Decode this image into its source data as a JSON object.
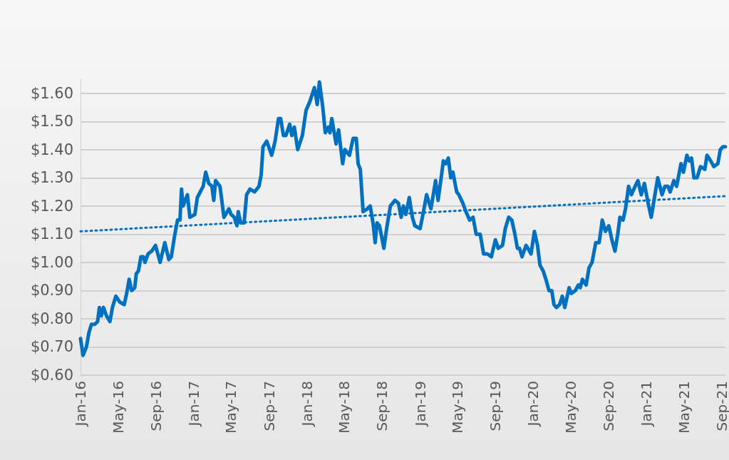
{
  "chart_data": {
    "type": "line",
    "grid": "y",
    "marker": "none",
    "xlim": [
      "2016-01-01",
      "2021-09-12"
    ],
    "ylim": [
      0.6,
      1.65
    ],
    "xticks": [
      {
        "value": "2016-01-01",
        "label": "Jan-16"
      },
      {
        "value": "2016-05-01",
        "label": "May-16"
      },
      {
        "value": "2016-09-01",
        "label": "Sep-16"
      },
      {
        "value": "2017-01-01",
        "label": "Jan-17"
      },
      {
        "value": "2017-05-01",
        "label": "May-17"
      },
      {
        "value": "2017-09-01",
        "label": "Sep-17"
      },
      {
        "value": "2018-01-01",
        "label": "Jan-18"
      },
      {
        "value": "2018-05-01",
        "label": "May-18"
      },
      {
        "value": "2018-09-01",
        "label": "Sep-18"
      },
      {
        "value": "2019-01-01",
        "label": "Jan-19"
      },
      {
        "value": "2019-05-01",
        "label": "May-19"
      },
      {
        "value": "2019-09-01",
        "label": "Sep-19"
      },
      {
        "value": "2020-01-01",
        "label": "Jan-20"
      },
      {
        "value": "2020-05-01",
        "label": "May-20"
      },
      {
        "value": "2020-09-01",
        "label": "Sep-20"
      },
      {
        "value": "2021-01-01",
        "label": "Jan-21"
      },
      {
        "value": "2021-05-01",
        "label": "May-21"
      },
      {
        "value": "2021-09-01",
        "label": "Sep-21"
      }
    ],
    "yticks": [
      {
        "value": 0.6,
        "label": "$0.60"
      },
      {
        "value": 0.7,
        "label": "$0.70"
      },
      {
        "value": 0.8,
        "label": "$0.80"
      },
      {
        "value": 0.9,
        "label": "$0.90"
      },
      {
        "value": 1.0,
        "label": "$1.00"
      },
      {
        "value": 1.1,
        "label": "$1.10"
      },
      {
        "value": 1.2,
        "label": "$1.20"
      },
      {
        "value": 1.3,
        "label": "$1.30"
      },
      {
        "value": 1.4,
        "label": "$1.40"
      },
      {
        "value": 1.5,
        "label": "$1.50"
      },
      {
        "value": 1.6,
        "label": "$1.60"
      }
    ],
    "series": [
      {
        "color": "#0070c0",
        "line_style": "solid",
        "x": [
          "2016-01-01",
          "2016-01-09",
          "2016-01-20",
          "2016-01-28",
          "2016-02-05",
          "2016-02-16",
          "2016-02-25",
          "2016-03-02",
          "2016-03-08",
          "2016-03-15",
          "2016-03-25",
          "2016-04-05",
          "2016-04-13",
          "2016-04-24",
          "2016-05-06",
          "2016-05-21",
          "2016-05-29",
          "2016-06-06",
          "2016-06-14",
          "2016-06-24",
          "2016-06-29",
          "2016-07-06",
          "2016-07-14",
          "2016-07-22",
          "2016-07-27",
          "2016-08-06",
          "2016-08-18",
          "2016-08-30",
          "2016-09-14",
          "2016-09-29",
          "2016-10-12",
          "2016-10-20",
          "2016-10-30",
          "2016-11-09",
          "2016-11-17",
          "2016-11-22",
          "2016-11-27",
          "2016-12-11",
          "2016-12-19",
          "2017-01-04",
          "2017-01-12",
          "2017-01-31",
          "2017-02-08",
          "2017-02-18",
          "2017-02-28",
          "2017-03-06",
          "2017-03-12",
          "2017-03-26",
          "2017-04-08",
          "2017-04-24",
          "2017-05-01",
          "2017-05-11",
          "2017-05-20",
          "2017-05-24",
          "2017-06-01",
          "2017-06-12",
          "2017-06-20",
          "2017-07-01",
          "2017-07-16",
          "2017-07-30",
          "2017-08-06",
          "2017-08-12",
          "2017-08-24",
          "2017-09-09",
          "2017-09-20",
          "2017-10-01",
          "2017-10-08",
          "2017-10-17",
          "2017-10-25",
          "2017-11-06",
          "2017-11-13",
          "2017-11-21",
          "2017-12-02",
          "2017-12-17",
          "2017-12-29",
          "2018-01-10",
          "2018-01-25",
          "2018-02-03",
          "2018-02-10",
          "2018-02-21",
          "2018-03-01",
          "2018-03-11",
          "2018-03-16",
          "2018-03-22",
          "2018-04-05",
          "2018-04-13",
          "2018-04-26",
          "2018-05-03",
          "2018-05-18",
          "2018-05-30",
          "2018-06-09",
          "2018-06-15",
          "2018-06-22",
          "2018-07-01",
          "2018-07-15",
          "2018-07-24",
          "2018-08-02",
          "2018-08-09",
          "2018-08-15",
          "2018-08-23",
          "2018-09-06",
          "2018-09-15",
          "2018-09-27",
          "2018-10-12",
          "2018-10-23",
          "2018-11-01",
          "2018-11-08",
          "2018-11-16",
          "2018-11-27",
          "2018-12-07",
          "2018-12-15",
          "2019-01-01",
          "2019-01-12",
          "2019-01-22",
          "2019-02-05",
          "2019-02-20",
          "2019-02-28",
          "2019-03-10",
          "2019-03-17",
          "2019-03-25",
          "2019-04-02",
          "2019-04-10",
          "2019-04-17",
          "2019-04-29",
          "2019-05-06",
          "2019-05-19",
          "2019-05-29",
          "2019-06-10",
          "2019-06-21",
          "2019-07-01",
          "2019-07-14",
          "2019-07-25",
          "2019-08-06",
          "2019-08-19",
          "2019-09-01",
          "2019-09-10",
          "2019-09-24",
          "2019-10-03",
          "2019-10-14",
          "2019-10-24",
          "2019-11-03",
          "2019-11-11",
          "2019-11-18",
          "2019-11-26",
          "2019-12-09",
          "2019-12-15",
          "2019-12-25",
          "2020-01-05",
          "2020-01-15",
          "2020-01-23",
          "2020-02-02",
          "2020-02-11",
          "2020-02-21",
          "2020-03-01",
          "2020-03-08",
          "2020-03-16",
          "2020-03-26",
          "2020-04-04",
          "2020-04-12",
          "2020-04-26",
          "2020-05-03",
          "2020-05-16",
          "2020-05-26",
          "2020-06-01",
          "2020-06-08",
          "2020-06-20",
          "2020-06-29",
          "2020-07-09",
          "2020-07-21",
          "2020-08-01",
          "2020-08-11",
          "2020-08-21",
          "2020-09-01",
          "2020-09-11",
          "2020-09-21",
          "2020-09-30",
          "2020-10-07",
          "2020-10-17",
          "2020-10-25",
          "2020-11-04",
          "2020-11-13",
          "2020-11-25",
          "2020-12-04",
          "2020-12-15",
          "2020-12-25",
          "2021-01-06",
          "2021-01-16",
          "2021-01-25",
          "2021-02-06",
          "2021-02-20",
          "2021-03-01",
          "2021-03-11",
          "2021-03-18",
          "2021-03-30",
          "2021-04-08",
          "2021-04-22",
          "2021-04-30",
          "2021-05-11",
          "2021-05-19",
          "2021-05-26",
          "2021-06-03",
          "2021-06-13",
          "2021-06-24",
          "2021-07-08",
          "2021-07-15",
          "2021-07-27",
          "2021-08-06",
          "2021-08-19",
          "2021-08-27",
          "2021-09-04",
          "2021-09-12"
        ],
        "values": [
          0.73,
          0.67,
          0.7,
          0.75,
          0.78,
          0.78,
          0.79,
          0.84,
          0.81,
          0.84,
          0.81,
          0.79,
          0.84,
          0.88,
          0.86,
          0.85,
          0.89,
          0.94,
          0.9,
          0.91,
          0.96,
          0.97,
          1.02,
          1.02,
          1.0,
          1.03,
          1.04,
          1.06,
          1.0,
          1.07,
          1.01,
          1.02,
          1.09,
          1.15,
          1.15,
          1.26,
          1.2,
          1.24,
          1.16,
          1.17,
          1.23,
          1.27,
          1.32,
          1.28,
          1.27,
          1.22,
          1.29,
          1.27,
          1.16,
          1.19,
          1.17,
          1.16,
          1.13,
          1.18,
          1.14,
          1.14,
          1.24,
          1.26,
          1.25,
          1.27,
          1.31,
          1.41,
          1.43,
          1.38,
          1.43,
          1.51,
          1.51,
          1.45,
          1.45,
          1.49,
          1.45,
          1.48,
          1.4,
          1.45,
          1.54,
          1.57,
          1.62,
          1.56,
          1.64,
          1.55,
          1.46,
          1.48,
          1.46,
          1.51,
          1.42,
          1.47,
          1.35,
          1.4,
          1.38,
          1.44,
          1.44,
          1.35,
          1.33,
          1.18,
          1.19,
          1.2,
          1.14,
          1.07,
          1.14,
          1.13,
          1.05,
          1.12,
          1.2,
          1.22,
          1.21,
          1.16,
          1.2,
          1.17,
          1.23,
          1.16,
          1.13,
          1.12,
          1.18,
          1.24,
          1.19,
          1.29,
          1.22,
          1.3,
          1.36,
          1.35,
          1.37,
          1.3,
          1.32,
          1.25,
          1.24,
          1.21,
          1.18,
          1.15,
          1.16,
          1.1,
          1.1,
          1.03,
          1.03,
          1.02,
          1.08,
          1.05,
          1.06,
          1.12,
          1.16,
          1.15,
          1.1,
          1.05,
          1.05,
          1.02,
          1.06,
          1.05,
          1.03,
          1.11,
          1.06,
          0.99,
          0.97,
          0.94,
          0.9,
          0.9,
          0.85,
          0.84,
          0.85,
          0.88,
          0.84,
          0.91,
          0.89,
          0.9,
          0.92,
          0.91,
          0.94,
          0.92,
          0.98,
          1.0,
          1.07,
          1.07,
          1.15,
          1.11,
          1.13,
          1.08,
          1.04,
          1.1,
          1.16,
          1.15,
          1.19,
          1.27,
          1.24,
          1.27,
          1.29,
          1.24,
          1.28,
          1.21,
          1.16,
          1.22,
          1.3,
          1.24,
          1.27,
          1.27,
          1.25,
          1.29,
          1.27,
          1.35,
          1.32,
          1.38,
          1.36,
          1.37,
          1.3,
          1.3,
          1.34,
          1.33,
          1.38,
          1.36,
          1.34,
          1.35,
          1.4,
          1.41,
          1.41
        ]
      },
      {
        "color": "#0070c0",
        "line_style": "dotted",
        "x": [
          "2016-01-01",
          "2021-09-12"
        ],
        "values": [
          1.11,
          1.235
        ]
      }
    ]
  }
}
